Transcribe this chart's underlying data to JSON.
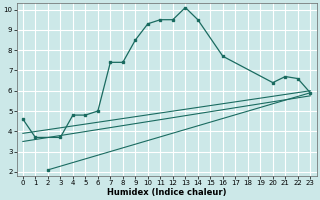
{
  "xlabel": "Humidex (Indice chaleur)",
  "background_color": "#cce8e8",
  "grid_color": "#ffffff",
  "line_color": "#1a6b60",
  "xlim": [
    -0.5,
    23.5
  ],
  "ylim": [
    1.8,
    10.3
  ],
  "yticks": [
    2,
    3,
    4,
    5,
    6,
    7,
    8,
    9,
    10
  ],
  "xticks": [
    0,
    1,
    2,
    3,
    4,
    5,
    6,
    7,
    8,
    9,
    10,
    11,
    12,
    13,
    14,
    15,
    16,
    17,
    18,
    19,
    20,
    21,
    22,
    23
  ],
  "main_x": [
    0,
    1,
    3,
    4,
    5,
    6,
    7,
    8,
    9,
    10,
    11,
    12,
    13,
    14,
    16,
    20,
    21,
    22,
    23
  ],
  "main_y": [
    4.6,
    3.7,
    3.7,
    4.8,
    4.8,
    5.0,
    7.4,
    7.4,
    8.5,
    9.3,
    9.5,
    9.5,
    10.1,
    9.5,
    7.7,
    6.4,
    6.7,
    6.6,
    5.9
  ],
  "trend1_x": [
    2,
    23
  ],
  "trend1_y": [
    2.1,
    5.9
  ],
  "trend2_x": [
    0,
    23
  ],
  "trend2_y": [
    3.5,
    5.75
  ],
  "trend3_x": [
    0,
    23
  ],
  "trend3_y": [
    3.9,
    6.0
  ],
  "lone_x": [
    2
  ],
  "lone_y": [
    2.1
  ]
}
